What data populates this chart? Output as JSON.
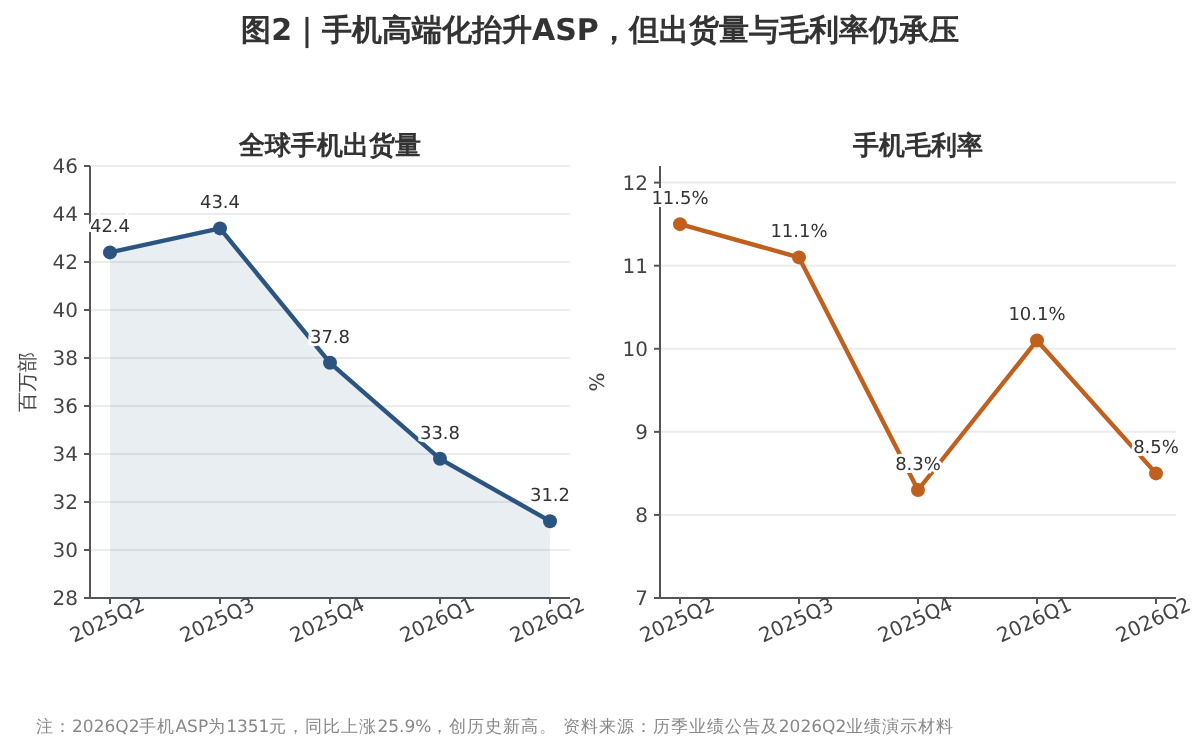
{
  "chart_data": [
    {
      "type": "area",
      "title": "图2｜手机高端化抬升ASP，但出货量与毛利率仍承压",
      "subtitle": "全球手机出货量",
      "ylabel": "百万部",
      "categories": [
        "2025Q2",
        "2025Q3",
        "2025Q4",
        "2026Q1",
        "2026Q2"
      ],
      "series": [
        {
          "color": "#2b5580",
          "values": [
            42.4,
            43.4,
            37.8,
            33.8,
            31.2
          ]
        }
      ],
      "ylim": [
        28,
        46
      ],
      "yticks": [
        28,
        30,
        32,
        34,
        36,
        38,
        40,
        42,
        44,
        46
      ],
      "grid": "y",
      "marker": "circle",
      "data_labels": true,
      "annotations": [
        "注：2026Q2手机ASP为1351元，同比上涨25.9%，创历史新高。 资料来源：历季业绩公告及2026Q2业绩演示材料"
      ]
    },
    {
      "type": "line",
      "title": "手机毛利率",
      "ylabel": "%",
      "categories": [
        "2025Q2",
        "2025Q3",
        "2025Q4",
        "2026Q1",
        "2026Q2"
      ],
      "series": [
        {
          "color": "#c0601f",
          "values": [
            11.5,
            11.1,
            8.3,
            10.1,
            8.5
          ],
          "value_labels": [
            "11.5%",
            "11.1%",
            "8.3%",
            "10.1%",
            "8.5%"
          ]
        }
      ],
      "ylim": [
        7,
        12.2
      ],
      "yticks": [
        7,
        8,
        9,
        10,
        11,
        12
      ],
      "grid": "y",
      "marker": "circle"
    }
  ]
}
